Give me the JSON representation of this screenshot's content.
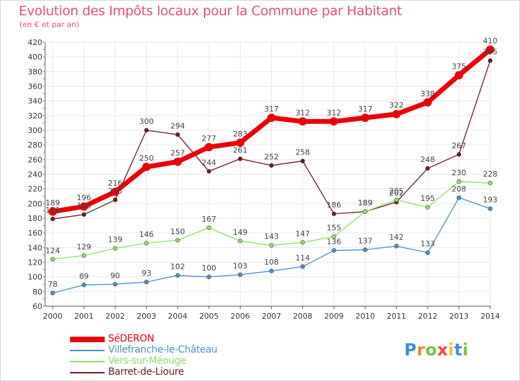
{
  "title": "Evolution des Impôts locaux pour la Commune par Habitant",
  "subtitle": "(en € et par an)",
  "logo_letters": [
    "P",
    "r",
    "o",
    "x",
    "i",
    "t",
    "i"
  ],
  "logo_colors": [
    "#3a8fd9",
    "#f08a24",
    "#7ac143",
    "#e84c3d",
    "#f2c12e",
    "#3a8fd9",
    "#7ac143"
  ],
  "chart_data": {
    "type": "line",
    "title": "Evolution des Impôts locaux pour la Commune par Habitant",
    "subtitle": "(en € et par an)",
    "x": [
      "2000",
      "2001",
      "2002",
      "2003",
      "2004",
      "2005",
      "2006",
      "2007",
      "2008",
      "2009",
      "2010",
      "2011",
      "2012",
      "2013",
      "2014"
    ],
    "ylim": [
      60,
      420
    ],
    "yticks": [
      60,
      80,
      100,
      120,
      140,
      160,
      180,
      200,
      220,
      240,
      260,
      280,
      300,
      320,
      340,
      360,
      380,
      400,
      420
    ],
    "grid": true,
    "legend_position": "bottom-left",
    "series": [
      {
        "name": "SéDERON",
        "color": "#e8000b",
        "values": [
          189,
          196,
          216,
          250,
          257,
          277,
          283,
          317,
          312,
          312,
          317,
          322,
          338,
          375,
          410
        ]
      },
      {
        "name": "Villefranche-le-Château",
        "color": "#4a90c8",
        "values": [
          78,
          89,
          90,
          93,
          102,
          100,
          103,
          108,
          114,
          136,
          137,
          142,
          133,
          208,
          193
        ]
      },
      {
        "name": "Vers-sur-Méouge",
        "color": "#8fdc6a",
        "values": [
          124,
          129,
          139,
          146,
          150,
          167,
          149,
          143,
          147,
          155,
          189,
          205,
          195,
          230,
          228
        ]
      },
      {
        "name": "Barret-de-Lioure",
        "color": "#6b1a1a",
        "values": [
          179,
          185,
          205,
          300,
          294,
          244,
          261,
          252,
          258,
          186,
          189,
          202,
          248,
          267,
          395
        ]
      }
    ]
  }
}
